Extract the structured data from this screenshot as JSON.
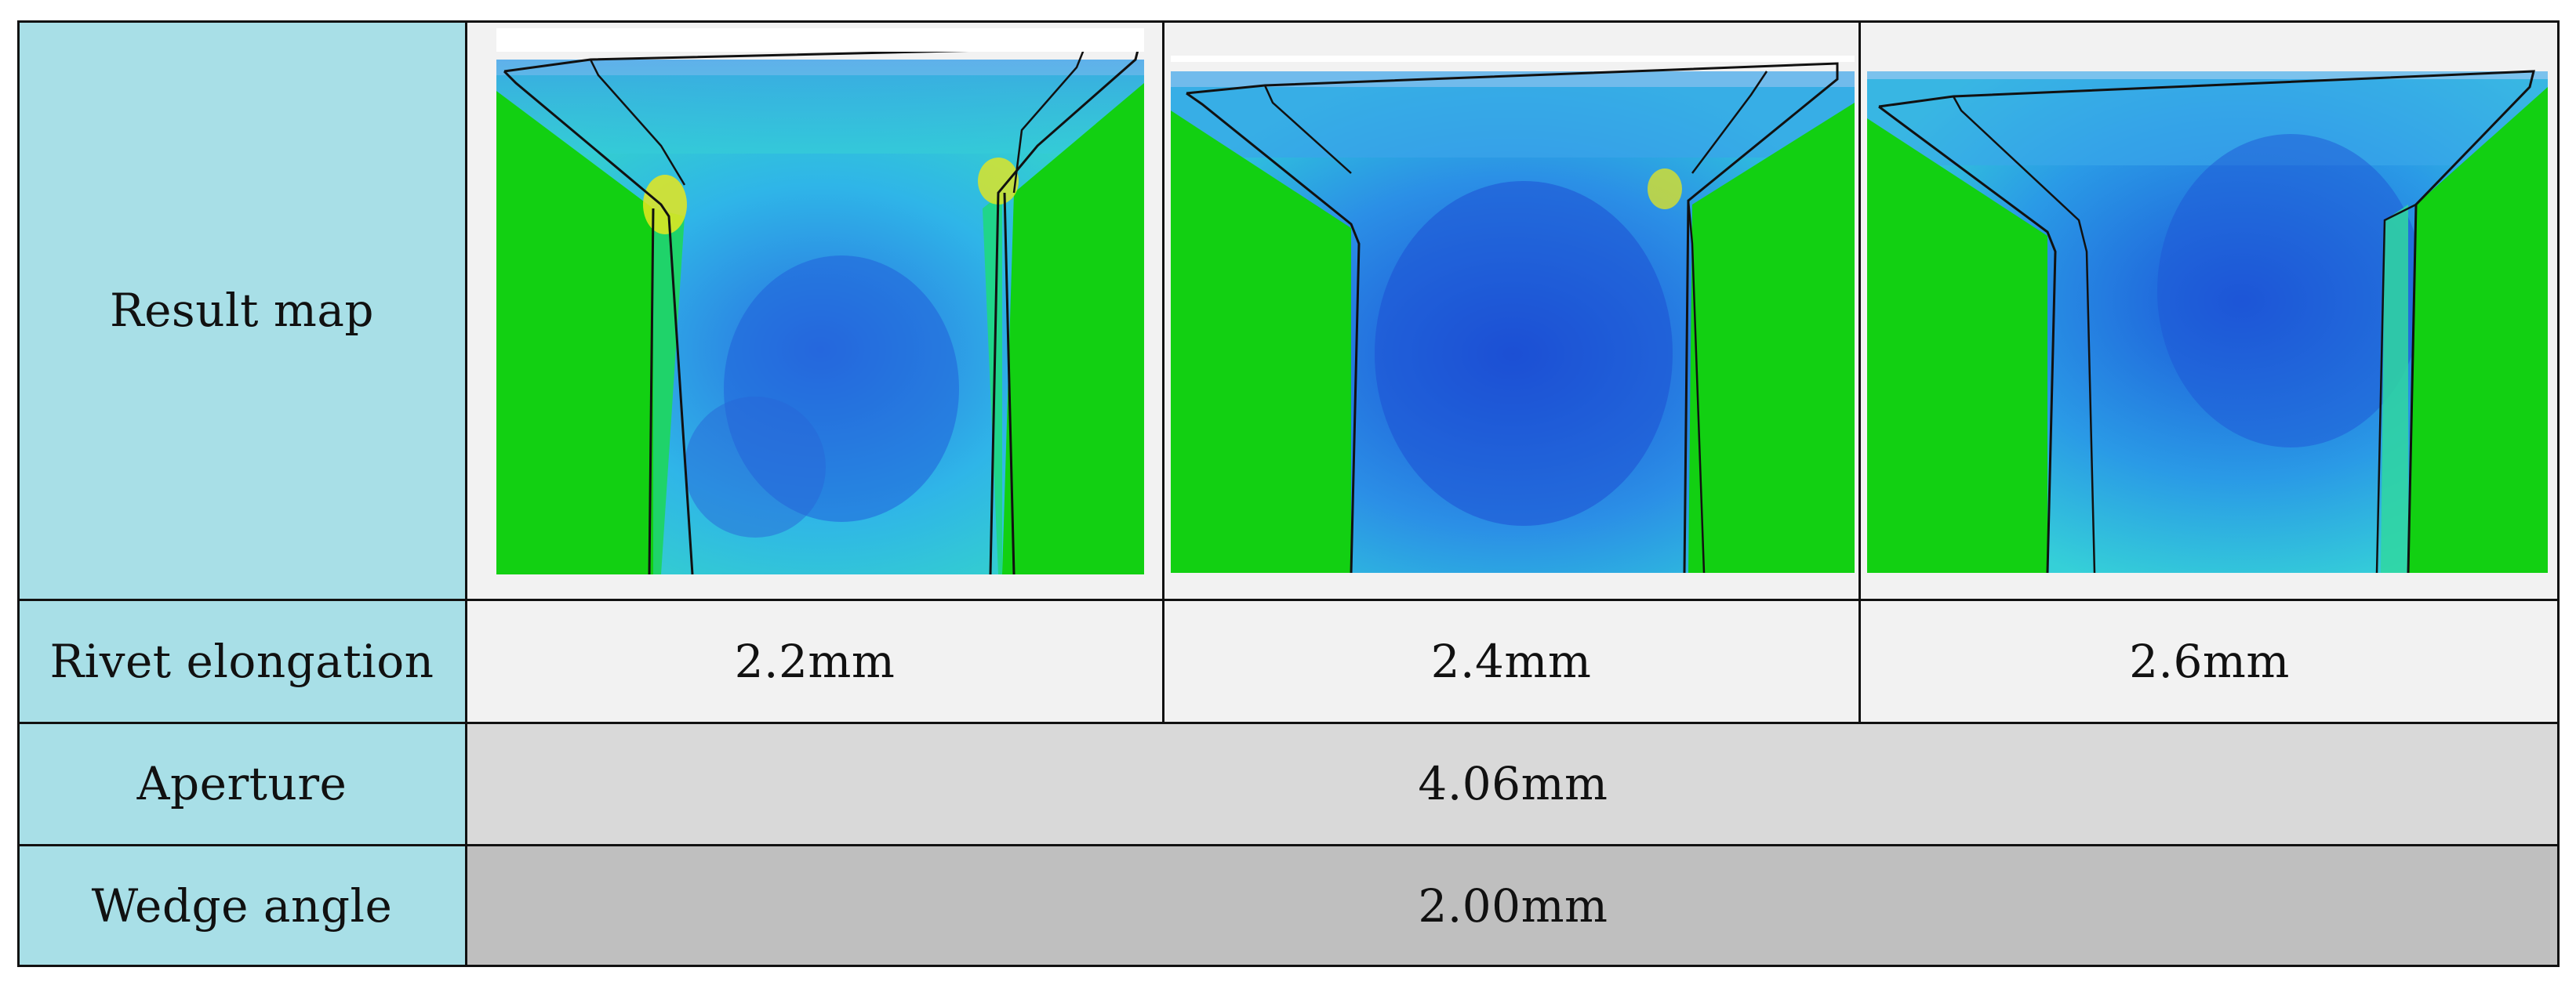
{
  "table": {
    "row_labels": {
      "result_map": "Result map",
      "rivet_elongation": "Rivet elongation",
      "aperture": "Aperture",
      "wedge_angle": "Wedge angle"
    },
    "elongations": [
      "2.2mm",
      "2.4mm",
      "2.6mm"
    ],
    "aperture_value": "4.06mm",
    "wedge_angle_value": "2.00mm"
  },
  "colors": {
    "header_cell": "#a8dfe7",
    "light_cell": "#f2f2f2",
    "aperture_cell": "#d9d9d9",
    "wedge_cell": "#bfbfbf",
    "sheet_green": "#10d010",
    "stress_blue": "#1e5ee0",
    "stress_cyan": "#22c8e8",
    "stress_yellow": "#e6e61e"
  },
  "images": [
    {
      "name": "result-map-2.2mm"
    },
    {
      "name": "result-map-2.4mm"
    },
    {
      "name": "result-map-2.6mm"
    }
  ]
}
